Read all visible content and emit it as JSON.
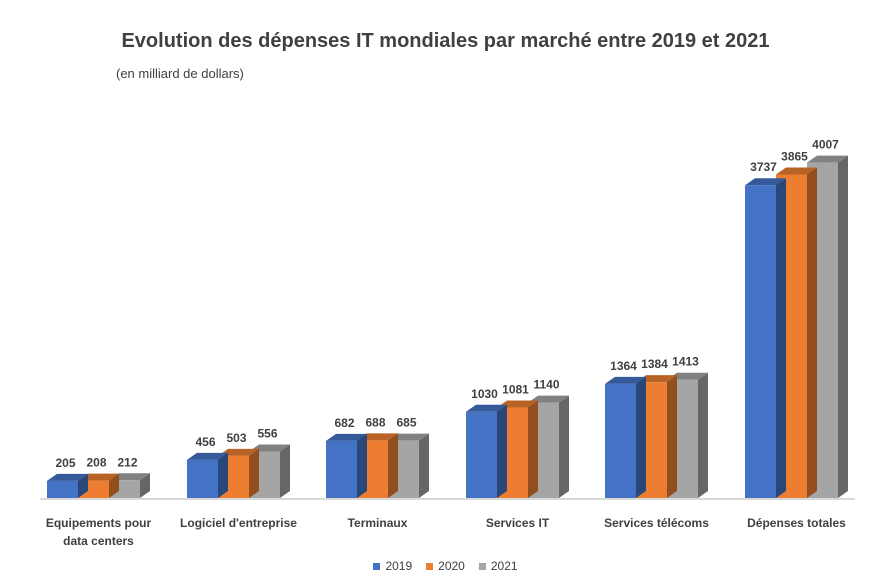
{
  "chart_data": {
    "type": "bar",
    "title": "Evolution des dépenses IT mondiales par marché entre 2019 et 2021",
    "subtitle": "(en milliard de dollars)",
    "categories": [
      [
        "Equipements pour",
        "data centers"
      ],
      [
        "Logiciel d'entreprise"
      ],
      [
        "Terminaux"
      ],
      [
        "Services IT"
      ],
      [
        "Services télécoms"
      ],
      [
        "Dépenses totales"
      ]
    ],
    "series": [
      {
        "name": "2019",
        "color": "#4472C4",
        "values": [
          205,
          456,
          682,
          1030,
          1364,
          3737
        ]
      },
      {
        "name": "2020",
        "color": "#ED7D31",
        "values": [
          208,
          503,
          688,
          1081,
          1384,
          3865
        ]
      },
      {
        "name": "2021",
        "color": "#A5A5A5",
        "values": [
          212,
          556,
          685,
          1140,
          1413,
          4007
        ]
      }
    ],
    "ylim": [
      0,
      4800
    ],
    "grid": false,
    "three_d": true,
    "data_labels": true,
    "legend_position": "bottom"
  }
}
